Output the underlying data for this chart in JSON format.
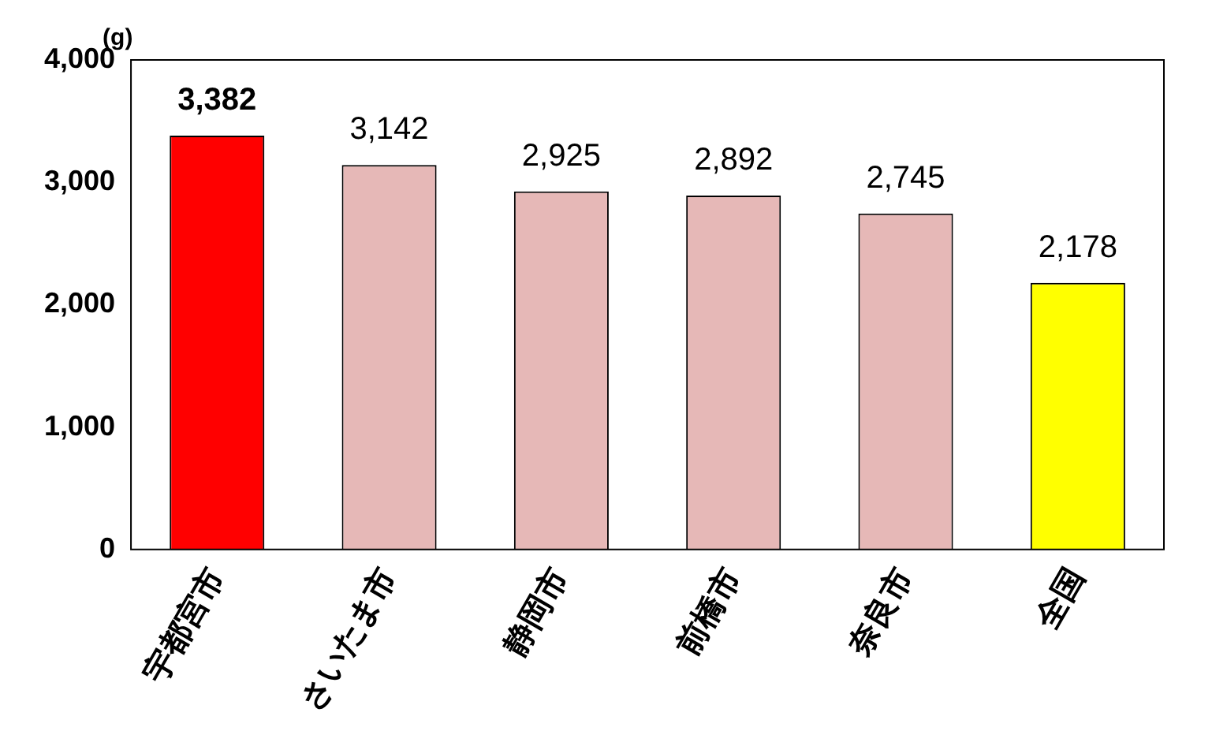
{
  "chart_data": {
    "type": "bar",
    "ylabel": "(g)",
    "categories": [
      "宇都宮市",
      "さいたま市",
      "静岡市",
      "前橋市",
      "奈良市",
      "全国"
    ],
    "values": [
      3382,
      3142,
      2925,
      2892,
      2745,
      2178
    ],
    "value_labels": [
      "3,382",
      "3,142",
      "2,925",
      "2,892",
      "2,745",
      "2,178"
    ],
    "colors": [
      "#ff0000",
      "#e6b8b7",
      "#e6b8b7",
      "#e6b8b7",
      "#e6b8b7",
      "#ffff00"
    ],
    "ylim": [
      0,
      4000
    ],
    "yticks": [
      0,
      {
        "value": 1000,
        "label": "1,000"
      },
      {
        "value": 2000,
        "label": "2,000"
      },
      {
        "value": 3000,
        "label": "3,000"
      },
      {
        "value": 4000,
        "label": "4,000"
      }
    ],
    "grid": false,
    "legend": false
  }
}
